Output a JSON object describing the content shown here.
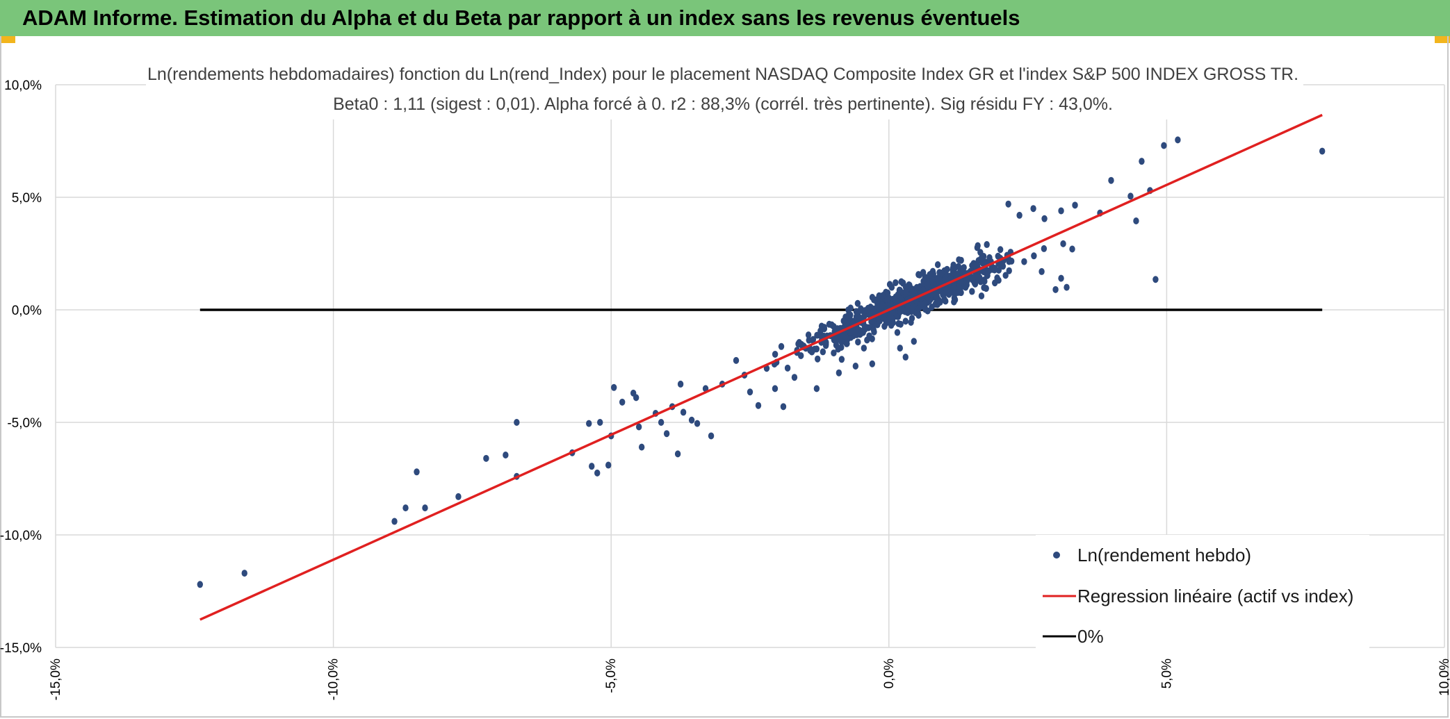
{
  "header": {
    "title": "ADAM Informe. Estimation du Alpha et du Beta par rapport à un index sans les revenus éventuels"
  },
  "colors": {
    "header_bg": "#7ac57a",
    "points": "#2e4a7d",
    "regression": "#e02020",
    "zero_line": "#000000",
    "grid": "#d9d9d9"
  },
  "chart_data": {
    "type": "scatter",
    "title": "Ln(rendements hebdomadaires) fonction du Ln(rend_Index) pour le placement NASDAQ Composite Index GR et l'index S&P 500 INDEX GROSS TR.",
    "subtitle": "Beta0 : 1,11 (sigest : 0,01). Alpha forcé à 0. r2 : 88,3% (corrél. très pertinente). Sig résidu FY : 43,0%.",
    "xlim": [
      -15,
      10
    ],
    "ylim": [
      -15,
      10
    ],
    "x_ticks": [
      -15,
      -10,
      -5,
      0,
      5,
      10
    ],
    "x_tick_labels": [
      "-15,0%",
      "-10,0%",
      "-5,0%",
      "0,0%",
      "5,0%",
      "10,0%"
    ],
    "y_ticks": [
      -15,
      -10,
      -5,
      0,
      5,
      10
    ],
    "y_tick_labels": [
      "-15,0%",
      "-10,0%",
      "-5,0%",
      "0,0%",
      "5,0%",
      "10,0%"
    ],
    "legend": {
      "position": "bottom-right",
      "entries": [
        "Ln(rendement hebdo)",
        "Regression linéaire (actif vs index)",
        "0%"
      ]
    },
    "series": [
      {
        "name": "Ln(rendement hebdo)",
        "kind": "scatter",
        "points": [
          [
            -12.4,
            -12.2
          ],
          [
            -11.6,
            -11.7
          ],
          [
            -8.9,
            -9.4
          ],
          [
            -8.7,
            -8.8
          ],
          [
            -8.5,
            -7.2
          ],
          [
            -8.35,
            -8.8
          ],
          [
            -7.75,
            -8.3
          ],
          [
            -7.25,
            -6.6
          ],
          [
            -6.9,
            -6.45
          ],
          [
            -6.7,
            -5.0
          ],
          [
            -6.7,
            -7.4
          ],
          [
            -5.7,
            -6.35
          ],
          [
            -5.4,
            -5.05
          ],
          [
            -5.35,
            -6.95
          ],
          [
            -5.25,
            -7.25
          ],
          [
            -5.2,
            -5.0
          ],
          [
            -5.05,
            -6.9
          ],
          [
            -5.0,
            -5.6
          ],
          [
            -4.95,
            -3.45
          ],
          [
            -4.8,
            -4.1
          ],
          [
            -4.6,
            -3.7
          ],
          [
            -4.55,
            -3.9
          ],
          [
            -4.5,
            -5.2
          ],
          [
            -4.45,
            -6.1
          ],
          [
            -4.2,
            -4.6
          ],
          [
            -4.1,
            -5.0
          ],
          [
            -4.0,
            -5.5
          ],
          [
            -3.9,
            -4.3
          ],
          [
            -3.8,
            -6.4
          ],
          [
            -3.75,
            -3.3
          ],
          [
            -3.7,
            -4.55
          ],
          [
            -3.55,
            -4.9
          ],
          [
            -3.45,
            -5.05
          ],
          [
            -3.3,
            -3.5
          ],
          [
            -3.2,
            -5.6
          ],
          [
            -3.0,
            -3.3
          ],
          [
            -2.75,
            -2.25
          ],
          [
            -2.6,
            -2.9
          ],
          [
            -2.5,
            -3.65
          ],
          [
            -2.35,
            -4.25
          ],
          [
            -2.2,
            -2.6
          ],
          [
            -2.05,
            -3.5
          ],
          [
            -1.9,
            -4.3
          ],
          [
            -1.7,
            -3.0
          ],
          [
            -1.3,
            -3.5
          ],
          [
            -0.9,
            -2.8
          ],
          [
            -0.85,
            -2.2
          ],
          [
            -0.6,
            -2.5
          ],
          [
            -0.45,
            -1.7
          ],
          [
            -0.3,
            -2.4
          ],
          [
            0.2,
            -1.7
          ],
          [
            0.3,
            -2.1
          ],
          [
            0.45,
            -1.4
          ],
          [
            0.8,
            1.6
          ],
          [
            1.3,
            2.2
          ],
          [
            1.6,
            2.85
          ],
          [
            2.15,
            4.7
          ],
          [
            2.35,
            4.2
          ],
          [
            2.6,
            4.5
          ],
          [
            2.8,
            4.05
          ],
          [
            3.1,
            4.4
          ],
          [
            3.35,
            4.65
          ],
          [
            3.8,
            4.3
          ],
          [
            4.0,
            5.75
          ],
          [
            4.35,
            5.05
          ],
          [
            4.45,
            3.95
          ],
          [
            4.55,
            6.6
          ],
          [
            4.7,
            5.3
          ],
          [
            4.8,
            1.35
          ],
          [
            4.95,
            7.3
          ],
          [
            5.2,
            7.55
          ],
          [
            7.8,
            7.05
          ],
          [
            3.2,
            1.0
          ],
          [
            3.0,
            0.9
          ],
          [
            2.75,
            1.7
          ],
          [
            3.3,
            2.7
          ],
          [
            3.1,
            1.4
          ]
        ]
      },
      {
        "name": "Regression linéaire (actif vs index)",
        "kind": "line",
        "slope": 1.11,
        "intercept": 0,
        "x_range": [
          -12.4,
          7.8
        ]
      },
      {
        "name": "0%",
        "kind": "line",
        "slope": 0,
        "intercept": 0,
        "x_range": [
          -12.4,
          7.8
        ]
      }
    ]
  }
}
